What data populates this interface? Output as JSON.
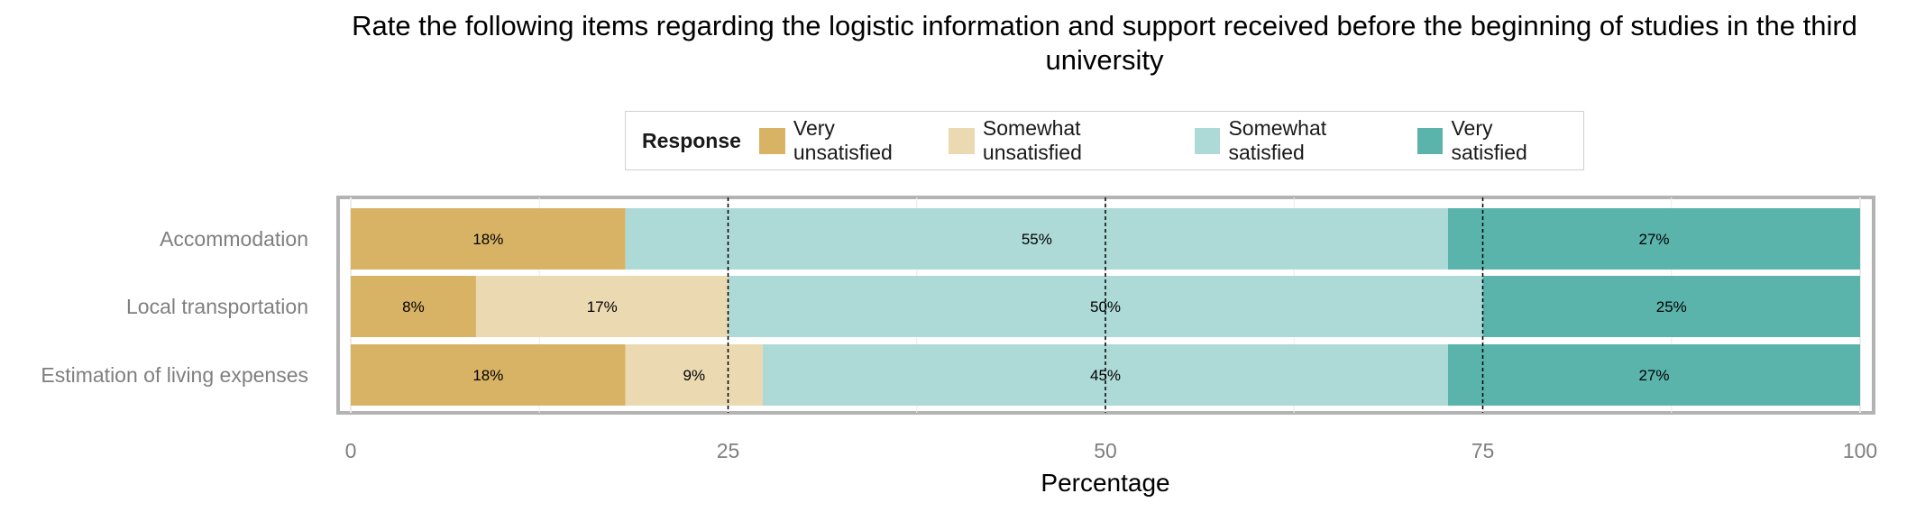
{
  "chart_data": {
    "type": "bar",
    "orientation": "horizontal",
    "stacked": true,
    "title": "Rate the following items regarding the logistic information and support received before the beginning of studies in the third university",
    "xlabel": "Percentage",
    "ylabel": "",
    "xlim": [
      0,
      100
    ],
    "xticks": [
      "0",
      "25",
      "50",
      "75",
      "100"
    ],
    "xtick_values": [
      0,
      25,
      50,
      75,
      100
    ],
    "grid": true,
    "reference_lines": [
      25,
      50,
      75
    ],
    "legend": {
      "title": "Response",
      "placement": "top",
      "entries": [
        "Very unsatisfied",
        "Somewhat unsatisfied",
        "Somewhat satisfied",
        "Very satisfied"
      ]
    },
    "categories": [
      "Accommodation",
      "Local transportation",
      "Estimation of living expenses"
    ],
    "series": [
      {
        "name": "Very unsatisfied",
        "color": "#D8B365",
        "values": [
          18.2,
          8.3,
          18.2
        ],
        "labels": [
          "18%",
          "8%",
          "18%"
        ]
      },
      {
        "name": "Somewhat unsatisfied",
        "color": "#EBD9B2",
        "values": [
          0,
          16.7,
          9.1
        ],
        "labels": [
          "",
          "17%",
          "9%"
        ]
      },
      {
        "name": "Somewhat satisfied",
        "color": "#ADD9D6",
        "values": [
          54.5,
          50.0,
          45.4
        ],
        "labels": [
          "55%",
          "50%",
          "45%"
        ]
      },
      {
        "name": "Very satisfied",
        "color": "#5AB4AC",
        "values": [
          27.3,
          25.0,
          27.3
        ],
        "labels": [
          "27%",
          "25%",
          "27%"
        ]
      }
    ]
  }
}
